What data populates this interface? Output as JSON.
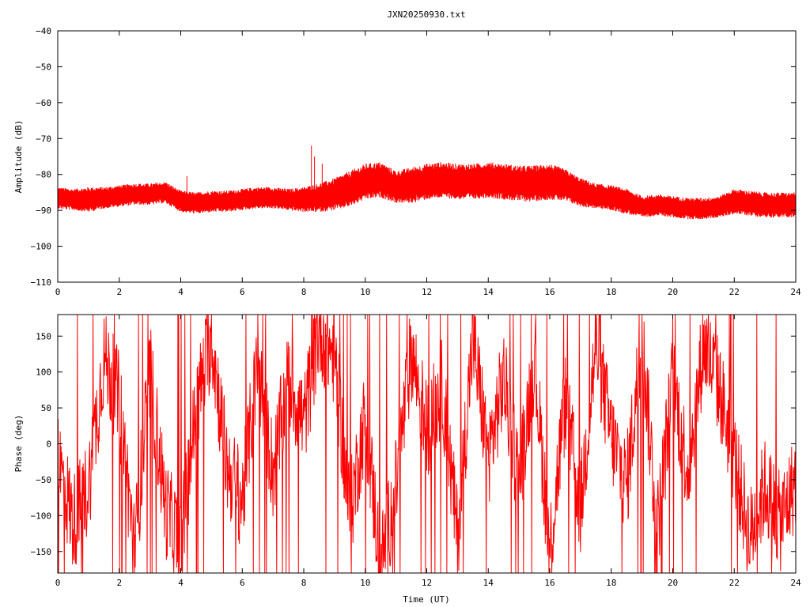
{
  "title": "JXN20250930.txt",
  "chart_data": [
    {
      "type": "line",
      "ylabel": "Amplitude (dB)",
      "xlim": [
        0,
        24
      ],
      "ylim": [
        -110,
        -40
      ],
      "xticks": [
        0,
        2,
        4,
        6,
        8,
        10,
        12,
        14,
        16,
        18,
        20,
        22,
        24
      ],
      "yticks": [
        -110,
        -100,
        -90,
        -80,
        -70,
        -60,
        -50,
        -40
      ],
      "tick_labels_y": [
        "−110",
        "−100",
        "−90",
        "−80",
        "−70",
        "−60",
        "−50",
        "−40"
      ],
      "grid": false,
      "color": "#ff0000",
      "series": [
        {
          "x": [
            0,
            0.5,
            1,
            1.5,
            2,
            2.5,
            3,
            3.5,
            4,
            4.5,
            5,
            5.5,
            6,
            6.5,
            7,
            7.5,
            8,
            8.5,
            9,
            9.5,
            10,
            10.5,
            11,
            11.5,
            12,
            12.5,
            13,
            13.5,
            14,
            14.5,
            15,
            15.5,
            16,
            16.5,
            17,
            17.5,
            18,
            18.5,
            19,
            19.5,
            20,
            20.5,
            21,
            21.5,
            22,
            22.5,
            23,
            23.5,
            24
          ],
          "y": [
            -86.5,
            -87,
            -87,
            -86.5,
            -86,
            -85.5,
            -85.5,
            -85,
            -87.5,
            -88,
            -87.5,
            -87.5,
            -87,
            -86.5,
            -86.5,
            -87,
            -87,
            -86.5,
            -85.5,
            -84,
            -82,
            -81.5,
            -83.5,
            -83,
            -82,
            -81.5,
            -82,
            -82,
            -81.5,
            -82,
            -82.5,
            -82.5,
            -82,
            -83,
            -85,
            -86,
            -86.5,
            -87.5,
            -89,
            -88.5,
            -89,
            -89.5,
            -89.5,
            -89,
            -87.5,
            -88,
            -88.5,
            -88.5,
            -88.5
          ],
          "band": [
            3,
            3,
            3.5,
            3,
            3,
            3,
            3,
            3,
            3,
            3,
            3,
            3,
            3,
            3,
            3,
            3,
            3.5,
            4,
            4.5,
            5,
            5,
            5,
            4.5,
            5,
            5,
            5,
            5,
            5,
            5,
            5,
            5,
            5,
            5,
            4.5,
            4,
            3.5,
            3.5,
            3.5,
            3,
            3,
            3,
            3,
            3,
            3,
            3.5,
            3.5,
            3.5,
            3.5,
            3.5
          ],
          "spikes": [
            [
              8.25,
              -72
            ],
            [
              8.35,
              -75
            ],
            [
              8.6,
              -77
            ],
            [
              10.3,
              -77.5
            ],
            [
              14,
              -77
            ],
            [
              15.9,
              -77.5
            ],
            [
              4.2,
              -80.5
            ],
            [
              13.3,
              -78
            ]
          ]
        }
      ]
    },
    {
      "type": "line",
      "xlabel": "Time (UT)",
      "ylabel": "Phase (deg)",
      "xlim": [
        0,
        24
      ],
      "ylim": [
        -180,
        180
      ],
      "xticks": [
        0,
        2,
        4,
        6,
        8,
        10,
        12,
        14,
        16,
        18,
        20,
        22,
        24
      ],
      "yticks": [
        -150,
        -100,
        -50,
        0,
        50,
        100,
        150
      ],
      "tick_labels_y": [
        "−150",
        "−100",
        "−50",
        "0",
        "50",
        "100",
        "150"
      ],
      "grid": false,
      "color": "#ff0000",
      "series": [
        {
          "x": [
            0,
            0.5,
            1,
            1.5,
            2,
            2.5,
            3,
            3.5,
            4,
            4.5,
            5,
            5.5,
            6,
            6.5,
            7,
            7.5,
            8,
            8.5,
            9,
            9.5,
            10,
            10.5,
            11,
            11.5,
            12,
            12.5,
            13,
            13.5,
            14,
            14.5,
            15,
            15.5,
            16,
            16.5,
            17,
            17.5,
            18,
            18.5,
            19,
            19.5,
            20,
            20.5,
            21,
            21.5,
            22,
            22.5,
            23,
            23.5,
            24
          ],
          "y": [
            -20,
            -110,
            -60,
            120,
            60,
            -150,
            100,
            -90,
            -140,
            50,
            150,
            -30,
            -80,
            110,
            -40,
            90,
            30,
            160,
            120,
            -100,
            40,
            -170,
            -60,
            130,
            20,
            80,
            -130,
            150,
            -20,
            90,
            -50,
            120,
            -150,
            60,
            -90,
            140,
            10,
            -60,
            150,
            -120,
            90,
            -40,
            140,
            80,
            -20,
            -130,
            -60,
            -110,
            -50
          ]
        }
      ]
    }
  ]
}
